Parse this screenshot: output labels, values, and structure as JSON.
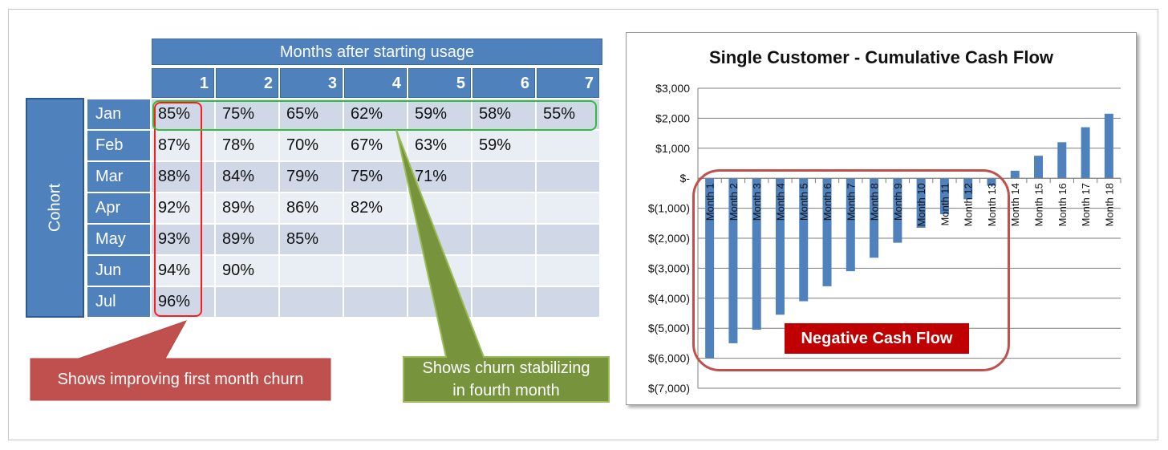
{
  "table": {
    "header": "Months after starting usage",
    "month_columns": [
      "1",
      "2",
      "3",
      "4",
      "5",
      "6",
      "7"
    ],
    "cohort_label": "Cohort",
    "rows": [
      {
        "label": "Jan",
        "values": [
          "85%",
          "75%",
          "65%",
          "62%",
          "59%",
          "58%",
          "55%"
        ]
      },
      {
        "label": "Feb",
        "values": [
          "87%",
          "78%",
          "70%",
          "67%",
          "63%",
          "59%",
          ""
        ]
      },
      {
        "label": "Mar",
        "values": [
          "88%",
          "84%",
          "79%",
          "75%",
          "71%",
          "",
          ""
        ]
      },
      {
        "label": "Apr",
        "values": [
          "92%",
          "89%",
          "86%",
          "82%",
          "",
          "",
          ""
        ]
      },
      {
        "label": "May",
        "values": [
          "93%",
          "89%",
          "85%",
          "",
          "",
          "",
          ""
        ]
      },
      {
        "label": "Jun",
        "values": [
          "94%",
          "90%",
          "",
          "",
          "",
          "",
          ""
        ]
      },
      {
        "label": "Jul",
        "values": [
          "96%",
          "",
          "",
          "",
          "",
          "",
          ""
        ]
      }
    ]
  },
  "callouts": {
    "red": "Shows improving first month churn",
    "green_line1": "Shows churn stabilizing",
    "green_line2": "in fourth month"
  },
  "annotation": "Negative Cash Flow",
  "colors": {
    "table_header": "#4f81bd",
    "row_odd": "#d0d8e8",
    "row_even": "#e9edf4",
    "bar": "#4f81bd",
    "callout_red": "#c0504d",
    "callout_green": "#77933c",
    "highlight_red": "#ff1a1a",
    "highlight_green": "#2fbf3a",
    "negative_label": "#c00000"
  },
  "chart_data": {
    "type": "bar",
    "title": "Single Customer - Cumulative Cash Flow",
    "categories": [
      "Month 1",
      "Month 2",
      "Month 3",
      "Month 4",
      "Month 5",
      "Month 6",
      "Month 7",
      "Month 8",
      "Month 9",
      "Month 10",
      "Month 11",
      "Month 12",
      "Month 13",
      "Month 14",
      "Month 15",
      "Month 16",
      "Month 17",
      "Month 18"
    ],
    "values": [
      -6000,
      -5500,
      -5050,
      -4550,
      -4100,
      -3600,
      -3100,
      -2650,
      -2150,
      -1650,
      -1200,
      -700,
      -250,
      250,
      750,
      1200,
      1700,
      2150
    ],
    "yticks": [
      "$3,000",
      "$2,000",
      "$1,000",
      "$-",
      "$(1,000)",
      "$(2,000)",
      "$(3,000)",
      "$(4,000)",
      "$(5,000)",
      "$(6,000)",
      "$(7,000)"
    ],
    "ylim": [
      -7000,
      3000
    ],
    "grid": true
  }
}
